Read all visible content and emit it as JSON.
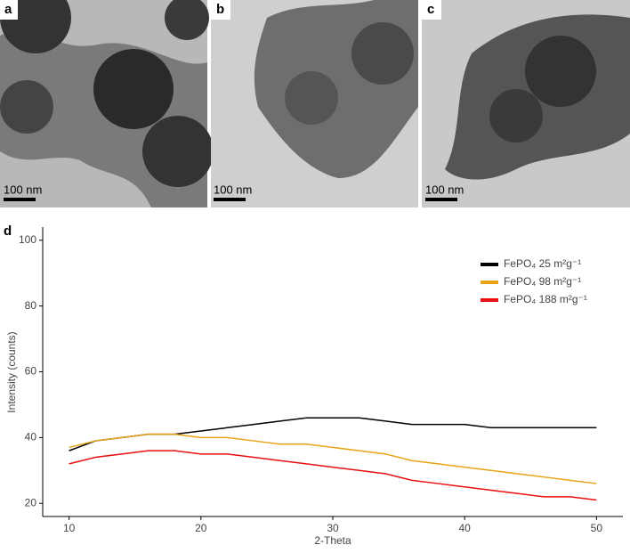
{
  "image_panels": [
    {
      "label": "a",
      "scale_bar": "100 nm"
    },
    {
      "label": "b",
      "scale_bar": "100 nm"
    },
    {
      "label": "c",
      "scale_bar": "100 nm"
    }
  ],
  "chart_data": {
    "type": "line",
    "panel_label": "d",
    "x_label": "2-Theta",
    "y_label": "Intensity (counts)",
    "x": [
      10,
      12,
      14,
      16,
      18,
      20,
      22,
      24,
      26,
      28,
      30,
      32,
      34,
      36,
      38,
      40,
      42,
      44,
      46,
      48,
      50
    ],
    "series": [
      {
        "name": "FePO₄  25 m²g⁻¹",
        "color": "#000000",
        "values": [
          36,
          39,
          40,
          41,
          41,
          42,
          43,
          44,
          45,
          46,
          46,
          46,
          45,
          44,
          44,
          44,
          43,
          43,
          43,
          43,
          43
        ]
      },
      {
        "name": "FePO₄  98 m²g⁻¹",
        "color": "#e8a317",
        "values": [
          37,
          39,
          40,
          41,
          41,
          40,
          40,
          39,
          38,
          38,
          37,
          36,
          35,
          33,
          32,
          31,
          30,
          29,
          28,
          27,
          26
        ]
      },
      {
        "name": "FePO₄ 188 m²g⁻¹",
        "color": "#e81010",
        "values": [
          32,
          34,
          35,
          36,
          36,
          35,
          35,
          34,
          33,
          32,
          31,
          30,
          29,
          27,
          26,
          25,
          24,
          23,
          22,
          22,
          21
        ]
      }
    ],
    "xlim": [
      8,
      52
    ],
    "ylim": [
      16,
      104
    ],
    "xticks": [
      10,
      20,
      30,
      40,
      50
    ],
    "yticks": [
      20,
      40,
      60,
      80,
      100
    ],
    "grid": false,
    "legend": "top-right"
  }
}
